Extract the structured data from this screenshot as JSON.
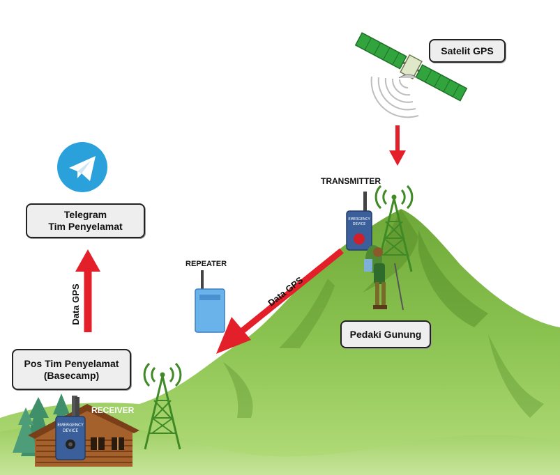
{
  "labels": {
    "satellite": "Satelit GPS",
    "transmitter": "TRANSMITTER",
    "repeater": "REPEATER",
    "receiver": "RECEIVER",
    "hiker": "Pedaki Gunung",
    "telegram_line1": "Telegram",
    "telegram_line2": "Tim Penyelamat",
    "basecamp_line1": "Pos Tim Penyelamat",
    "basecamp_line2": "(Basecamp)",
    "data_gps_diagonal": "Data GPS",
    "data_gps_vertical": "Data GPS"
  },
  "device_text": {
    "line1": "EMERGENCY",
    "line2": "DEVICE"
  },
  "colors": {
    "arrow": "#e3202a",
    "mountain_dark": "#5f9a2f",
    "mountain_light": "#a9d36a",
    "tower": "#3f8a26",
    "device": "#3a5f9a",
    "repeater": "#6ab2ea",
    "telegram": "#2aa1da",
    "satellite_panel": "#32a43e"
  }
}
